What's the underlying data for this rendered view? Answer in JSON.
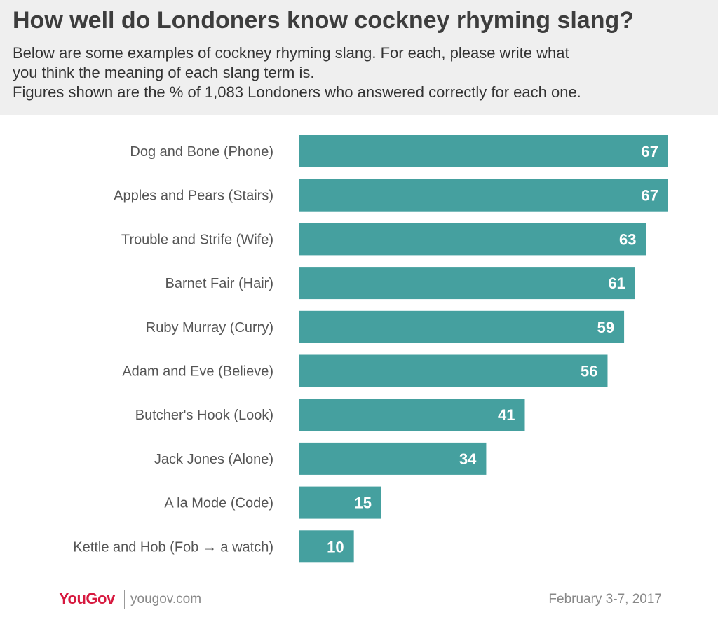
{
  "title": "How well do Londoners know cockney rhyming slang?",
  "subtitle_lines": [
    "Below are some examples of cockney rhyming slang. For each, please write what",
    "you think the meaning of each slang term is.",
    "Figures shown are the % of 1,083 Londoners who answered correctly for each one."
  ],
  "footer": {
    "brand": "YouGov",
    "site": "yougov.com",
    "date": "February 3-7, 2017"
  },
  "colors": {
    "bar": "#45a09f",
    "label": "#555555",
    "value": "#ffffff",
    "brand": "#d7193f"
  },
  "chart_data": {
    "type": "bar",
    "orientation": "horizontal",
    "categories": [
      "Dog and Bone (Phone)",
      "Apples and Pears (Stairs)",
      "Trouble and Strife (Wife)",
      "Barnet Fair (Hair)",
      "Ruby Murray (Curry)",
      "Adam and Eve (Believe)",
      "Butcher's Hook (Look)",
      "Jack Jones (Alone)",
      "A la Mode (Code)",
      "Kettle and Hob (Fob → a watch)"
    ],
    "values": [
      67,
      67,
      63,
      61,
      59,
      56,
      41,
      34,
      15,
      10
    ],
    "value_labels": [
      "67",
      "67",
      "63",
      "61",
      "59",
      "56",
      "41",
      "34",
      "15",
      "10"
    ],
    "xlim": [
      0,
      67
    ],
    "grid": false,
    "legend": "none"
  }
}
